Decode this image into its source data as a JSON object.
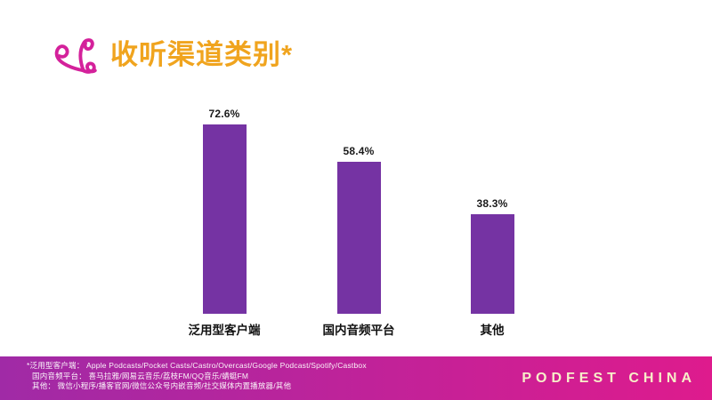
{
  "slide": {
    "title": "收听渠道类别*",
    "title_color": "#F0A41E",
    "icon": "podfest-loop-logo-icon",
    "icon_color": "#D4219B",
    "background": "#FFFFFF"
  },
  "chart_data": {
    "type": "bar",
    "title": "收听渠道类别*",
    "categories": [
      "泛用型客户端",
      "国内音频平台",
      "其他"
    ],
    "values": [
      72.6,
      58.4,
      38.3
    ],
    "value_labels": [
      "72.6%",
      "58.4%",
      "38.3%"
    ],
    "bar_color": "#7533A3",
    "xlabel": "",
    "ylabel": "",
    "ylim": [
      0,
      80
    ],
    "grid": false,
    "legend": false,
    "value_labels_position": "above-bar"
  },
  "footer": {
    "notes": [
      "*泛用型客户端： Apple Podcasts/Pocket Casts/Castro/Overcast/Google Podcast/Spotify/Castbox",
      "国内音频平台： 喜马拉雅/网易云音乐/荔枝FM/QQ音乐/蜻蜓FM",
      "其他： 微信小程序/播客官网/微信公众号内嵌音频/社交媒体内置播放器/其他"
    ],
    "brand": "PODFEST CHINA",
    "gradient_left": "#A02AA6",
    "gradient_right": "#DE1B8D",
    "brand_color": "#F7EFC9"
  }
}
